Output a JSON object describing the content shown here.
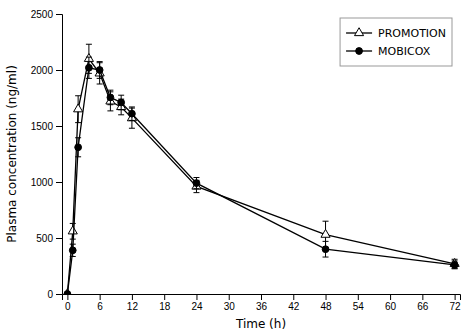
{
  "chart_data": {
    "type": "line",
    "x": [
      0,
      1,
      2,
      4,
      6,
      8,
      10,
      12,
      24,
      48,
      72
    ],
    "series": [
      {
        "name": "PROMOTION",
        "color": "#000000",
        "marker": "triangle-open",
        "line_style": "solid",
        "values": [
          0,
          560,
          1650,
          2100,
          1970,
          1720,
          1670,
          1570,
          960,
          530,
          270
        ],
        "errors": [
          0,
          70,
          120,
          130,
          95,
          85,
          70,
          90,
          55,
          120,
          40
        ]
      },
      {
        "name": "MOBICOX",
        "color": "#000000",
        "marker": "circle",
        "line_style": "solid",
        "values": [
          0,
          390,
          1310,
          2020,
          2000,
          1755,
          1710,
          1610,
          990,
          400,
          260
        ],
        "errors": [
          0,
          55,
          85,
          95,
          75,
          65,
          65,
          60,
          50,
          70,
          35
        ]
      }
    ],
    "xlabel": "Time (h)",
    "ylabel": "Plasma concentration (ng/ml)",
    "xlim": [
      -1,
      73
    ],
    "ylim": [
      0,
      2500
    ],
    "xticks": [
      0,
      6,
      12,
      18,
      24,
      30,
      36,
      42,
      48,
      54,
      60,
      66,
      72
    ],
    "yticks": [
      0,
      500,
      1000,
      1500,
      2000,
      2500
    ],
    "grid": false,
    "legend": "top-right"
  }
}
